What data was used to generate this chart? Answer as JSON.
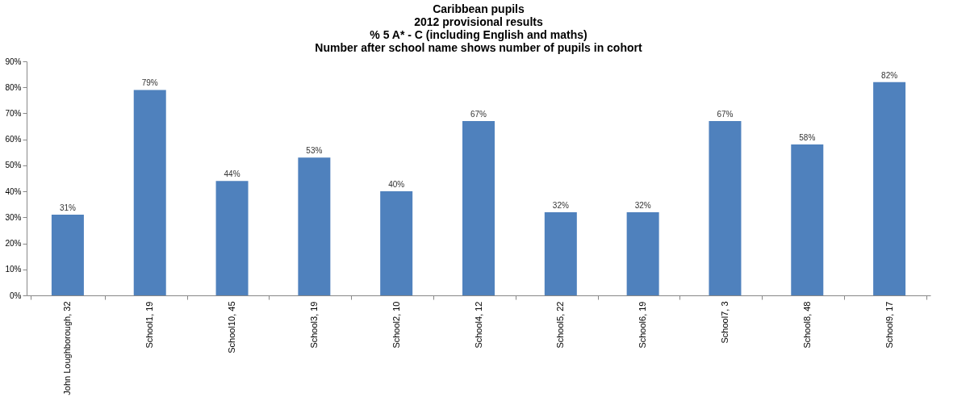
{
  "chart_data": {
    "type": "bar",
    "title": [
      "Caribbean pupils",
      "2012 provisional results",
      "% 5 A* - C (including English and maths)",
      "Number after school name shows number of pupils in cohort"
    ],
    "categories": [
      "John Loughborough, 32",
      "School1, 19",
      "School10, 45",
      "School3, 19",
      "School2, 10",
      "School4, 12",
      "School5, 22",
      "School6, 19",
      "School7, 3",
      "School8, 48",
      "School9, 17"
    ],
    "values": [
      31,
      79,
      44,
      53,
      40,
      67,
      32,
      32,
      67,
      58,
      82
    ],
    "value_labels": [
      "31%",
      "79%",
      "44%",
      "53%",
      "40%",
      "67%",
      "32%",
      "32%",
      "67%",
      "58%",
      "82%"
    ],
    "color": "#4f81bd",
    "ylim": [
      0,
      90
    ],
    "yticks": [
      {
        "value": 0,
        "label": "0%"
      },
      {
        "value": 10,
        "label": "10%"
      },
      {
        "value": 20,
        "label": "20%"
      },
      {
        "value": 30,
        "label": "30%"
      },
      {
        "value": 40,
        "label": "40%"
      },
      {
        "value": 50,
        "label": "50%"
      },
      {
        "value": 60,
        "label": "60%"
      },
      {
        "value": 70,
        "label": "70%"
      },
      {
        "value": 80,
        "label": "80%"
      },
      {
        "value": 90,
        "label": "90%"
      }
    ],
    "grid": false
  }
}
